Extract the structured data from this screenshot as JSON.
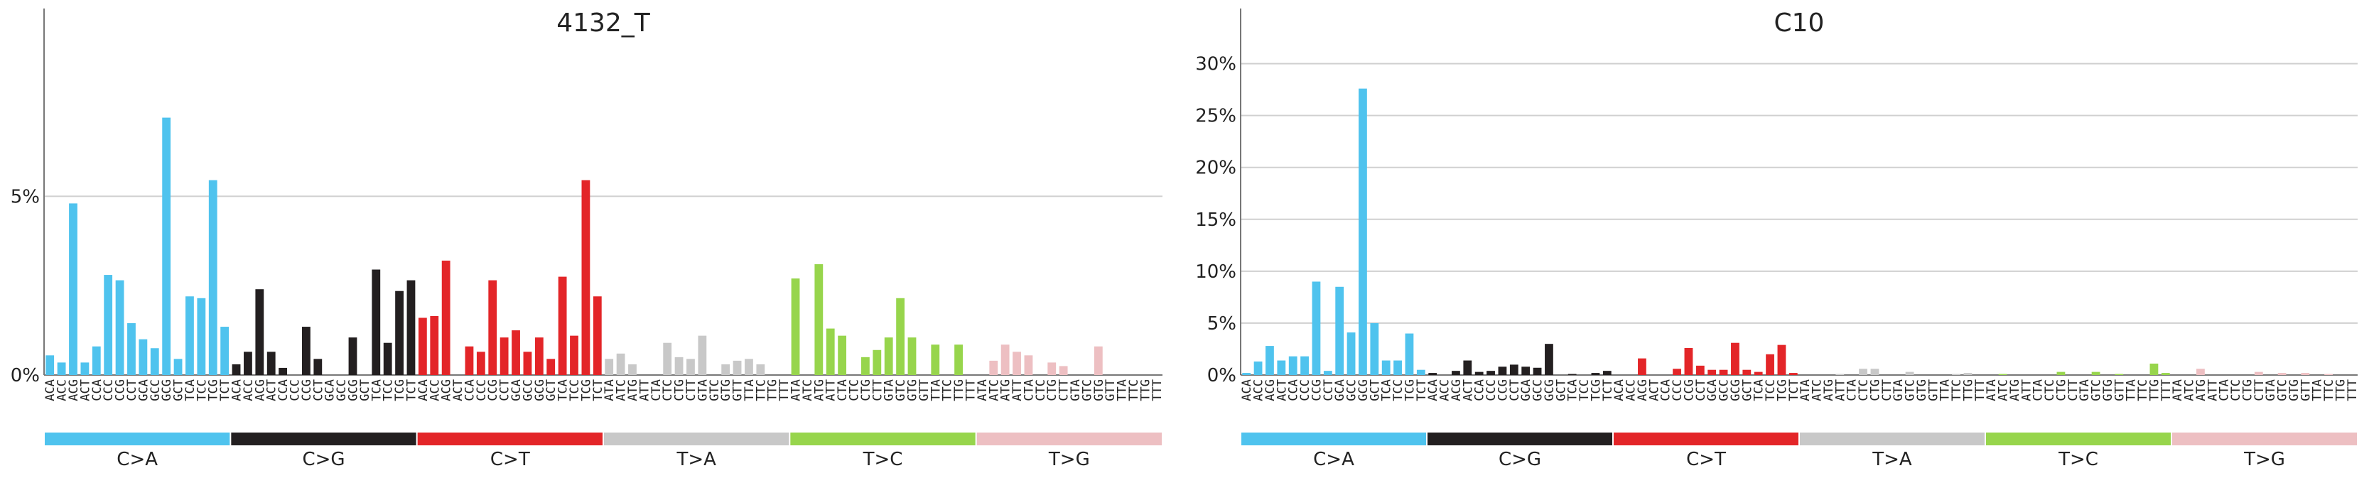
{
  "context_labels": [
    "ACA",
    "ACC",
    "ACG",
    "ACT",
    "CCA",
    "CCC",
    "CCG",
    "CCT",
    "GCA",
    "GCC",
    "GCG",
    "GCT",
    "TCA",
    "TCC",
    "TCG",
    "TCT",
    "ACA",
    "ACC",
    "ACG",
    "ACT",
    "CCA",
    "CCC",
    "CCG",
    "CCT",
    "GCA",
    "GCC",
    "GCG",
    "GCT",
    "TCA",
    "TCC",
    "TCG",
    "TCT",
    "ACA",
    "ACC",
    "ACG",
    "ACT",
    "CCA",
    "CCC",
    "CCG",
    "CCT",
    "GCA",
    "GCC",
    "GCG",
    "GCT",
    "TCA",
    "TCC",
    "TCG",
    "TCT",
    "ATA",
    "ATC",
    "ATG",
    "ATT",
    "CTA",
    "CTC",
    "CTG",
    "CTT",
    "GTA",
    "GTC",
    "GTG",
    "GTT",
    "TTA",
    "TTC",
    "TTG",
    "TTT",
    "ATA",
    "ATC",
    "ATG",
    "ATT",
    "CTA",
    "CTC",
    "CTG",
    "CTT",
    "GTA",
    "GTC",
    "GTG",
    "GTT",
    "TTA",
    "TTC",
    "TTG",
    "TTT",
    "ATA",
    "ATC",
    "ATG",
    "ATT",
    "CTA",
    "CTC",
    "CTG",
    "CTT",
    "GTA",
    "GTC",
    "GTG",
    "GTT",
    "TTA",
    "TTC",
    "TTG",
    "TTT"
  ],
  "groups": [
    {
      "name": "C>A",
      "color": "#4FC3EE",
      "light": "#4FC3EE"
    },
    {
      "name": "C>G",
      "color": "#231F20",
      "light": "#231F20"
    },
    {
      "name": "C>T",
      "color": "#E32528",
      "light": "#E32528"
    },
    {
      "name": "T>A",
      "color": "#C8C8C8",
      "light": "#C8C8C8"
    },
    {
      "name": "T>C",
      "color": "#97D54C",
      "light": "#97D54C"
    },
    {
      "name": "T>G",
      "color": "#EDBFC2",
      "light": "#EDBFC2"
    }
  ],
  "chart_data": [
    {
      "type": "bar",
      "title": "4132_T",
      "ylim": [
        0,
        9
      ],
      "yticks": [
        0,
        5
      ],
      "ytick_labels": [
        "0%",
        "5%"
      ],
      "grid": true,
      "values": [
        0.55,
        0.35,
        4.8,
        0.35,
        0.8,
        2.8,
        2.65,
        1.45,
        1.0,
        0.75,
        7.2,
        0.45,
        2.2,
        2.15,
        5.45,
        1.35,
        0.3,
        0.65,
        2.4,
        0.65,
        0.2,
        0.0,
        1.35,
        0.45,
        0.0,
        0.0,
        1.05,
        0.0,
        2.95,
        0.9,
        2.35,
        2.65,
        1.6,
        1.65,
        3.2,
        0.0,
        0.8,
        0.65,
        2.65,
        1.05,
        1.25,
        0.65,
        1.05,
        0.45,
        2.75,
        1.1,
        5.45,
        2.2,
        0.45,
        0.6,
        0.3,
        0.0,
        0.0,
        0.9,
        0.5,
        0.45,
        1.1,
        0.0,
        0.3,
        0.4,
        0.45,
        0.3,
        0.0,
        0.0,
        2.7,
        0.0,
        3.1,
        1.3,
        1.1,
        0.0,
        0.5,
        0.7,
        1.05,
        2.15,
        1.05,
        0.0,
        0.85,
        0.0,
        0.85,
        0.0,
        0.0,
        0.4,
        0.85,
        0.65,
        0.55,
        0.0,
        0.35,
        0.25,
        0.0,
        0.0,
        0.8,
        0.0,
        0.0,
        0.0,
        0.0,
        0.0
      ]
    },
    {
      "type": "bar",
      "title": "C10",
      "ylim": [
        0,
        31
      ],
      "yticks": [
        0,
        5,
        10,
        15,
        20,
        25,
        30
      ],
      "ytick_labels": [
        "0%",
        "5%",
        "10%",
        "15%",
        "20%",
        "25%",
        "30%"
      ],
      "grid": true,
      "values": [
        0.2,
        1.3,
        2.8,
        1.4,
        1.8,
        1.8,
        9.0,
        0.4,
        8.5,
        4.1,
        27.6,
        5.0,
        1.4,
        1.4,
        4.0,
        0.5,
        0.2,
        0.0,
        0.4,
        1.4,
        0.3,
        0.4,
        0.8,
        1.0,
        0.8,
        0.7,
        3.0,
        0.0,
        0.1,
        0.0,
        0.2,
        0.4,
        0.0,
        0.0,
        1.6,
        0.0,
        0.0,
        0.6,
        2.6,
        0.9,
        0.5,
        0.5,
        3.1,
        0.5,
        0.3,
        2.0,
        2.9,
        0.2,
        0.0,
        0.0,
        0.0,
        0.1,
        0.0,
        0.6,
        0.6,
        0.0,
        0.0,
        0.3,
        0.0,
        0.0,
        0.0,
        0.1,
        0.2,
        0.0,
        0.0,
        0.1,
        0.0,
        0.0,
        0.0,
        0.0,
        0.3,
        0.0,
        0.0,
        0.3,
        0.0,
        0.1,
        0.0,
        0.0,
        1.1,
        0.2,
        0.0,
        0.0,
        0.6,
        0.0,
        0.0,
        0.0,
        0.0,
        0.3,
        0.0,
        0.2,
        0.0,
        0.2,
        0.0,
        0.1,
        0.0,
        0.0
      ]
    }
  ]
}
